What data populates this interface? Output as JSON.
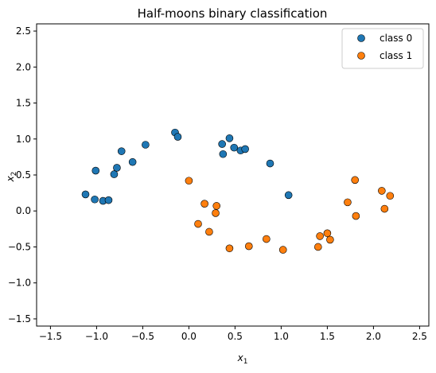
{
  "chart_data": {
    "type": "scatter",
    "title": "Half-moons binary classification",
    "xlabel": "x",
    "xlabel_sub": "1",
    "ylabel": "x",
    "ylabel_sub": "2",
    "xlim": [
      -1.65,
      2.6
    ],
    "ylim": [
      -1.6,
      2.6
    ],
    "xticks": [
      -1.5,
      -1.0,
      -0.5,
      0.0,
      0.5,
      1.0,
      1.5,
      2.0,
      2.5
    ],
    "xtick_labels": [
      "−1.5",
      "−1.0",
      "−0.5",
      "0.0",
      "0.5",
      "1.0",
      "1.5",
      "2.0",
      "2.5"
    ],
    "yticks": [
      -1.5,
      -1.0,
      -0.5,
      0.0,
      0.5,
      1.0,
      1.5,
      2.0,
      2.5
    ],
    "ytick_labels": [
      "−1.5",
      "−1.0",
      "−0.5",
      "0.0",
      "0.5",
      "1.0",
      "1.5",
      "2.0",
      "2.5"
    ],
    "grid": false,
    "legend_position": "top-right",
    "series": [
      {
        "name": "class 0",
        "color": "#1f77b4",
        "points": [
          [
            -1.12,
            0.23
          ],
          [
            -1.02,
            0.16
          ],
          [
            -1.01,
            0.56
          ],
          [
            -0.93,
            0.14
          ],
          [
            -0.87,
            0.15
          ],
          [
            -0.81,
            0.51
          ],
          [
            -0.78,
            0.6
          ],
          [
            -0.73,
            0.83
          ],
          [
            -0.61,
            0.68
          ],
          [
            -0.47,
            0.92
          ],
          [
            -0.15,
            1.09
          ],
          [
            -0.12,
            1.03
          ],
          [
            0.36,
            0.93
          ],
          [
            0.37,
            0.79
          ],
          [
            0.44,
            1.01
          ],
          [
            0.49,
            0.88
          ],
          [
            0.56,
            0.84
          ],
          [
            0.61,
            0.86
          ],
          [
            0.88,
            0.66
          ],
          [
            1.08,
            0.22
          ]
        ]
      },
      {
        "name": "class 1",
        "color": "#ff7f0e",
        "points": [
          [
            0.0,
            0.42
          ],
          [
            0.1,
            -0.18
          ],
          [
            0.17,
            0.1
          ],
          [
            0.22,
            -0.29
          ],
          [
            0.29,
            -0.03
          ],
          [
            0.3,
            0.07
          ],
          [
            0.44,
            -0.52
          ],
          [
            0.65,
            -0.49
          ],
          [
            0.84,
            -0.39
          ],
          [
            1.02,
            -0.54
          ],
          [
            1.4,
            -0.5
          ],
          [
            1.42,
            -0.35
          ],
          [
            1.5,
            -0.31
          ],
          [
            1.53,
            -0.4
          ],
          [
            1.72,
            0.12
          ],
          [
            1.8,
            0.43
          ],
          [
            1.81,
            -0.07
          ],
          [
            2.09,
            0.28
          ],
          [
            2.12,
            0.03
          ],
          [
            2.18,
            0.21
          ]
        ]
      }
    ]
  }
}
